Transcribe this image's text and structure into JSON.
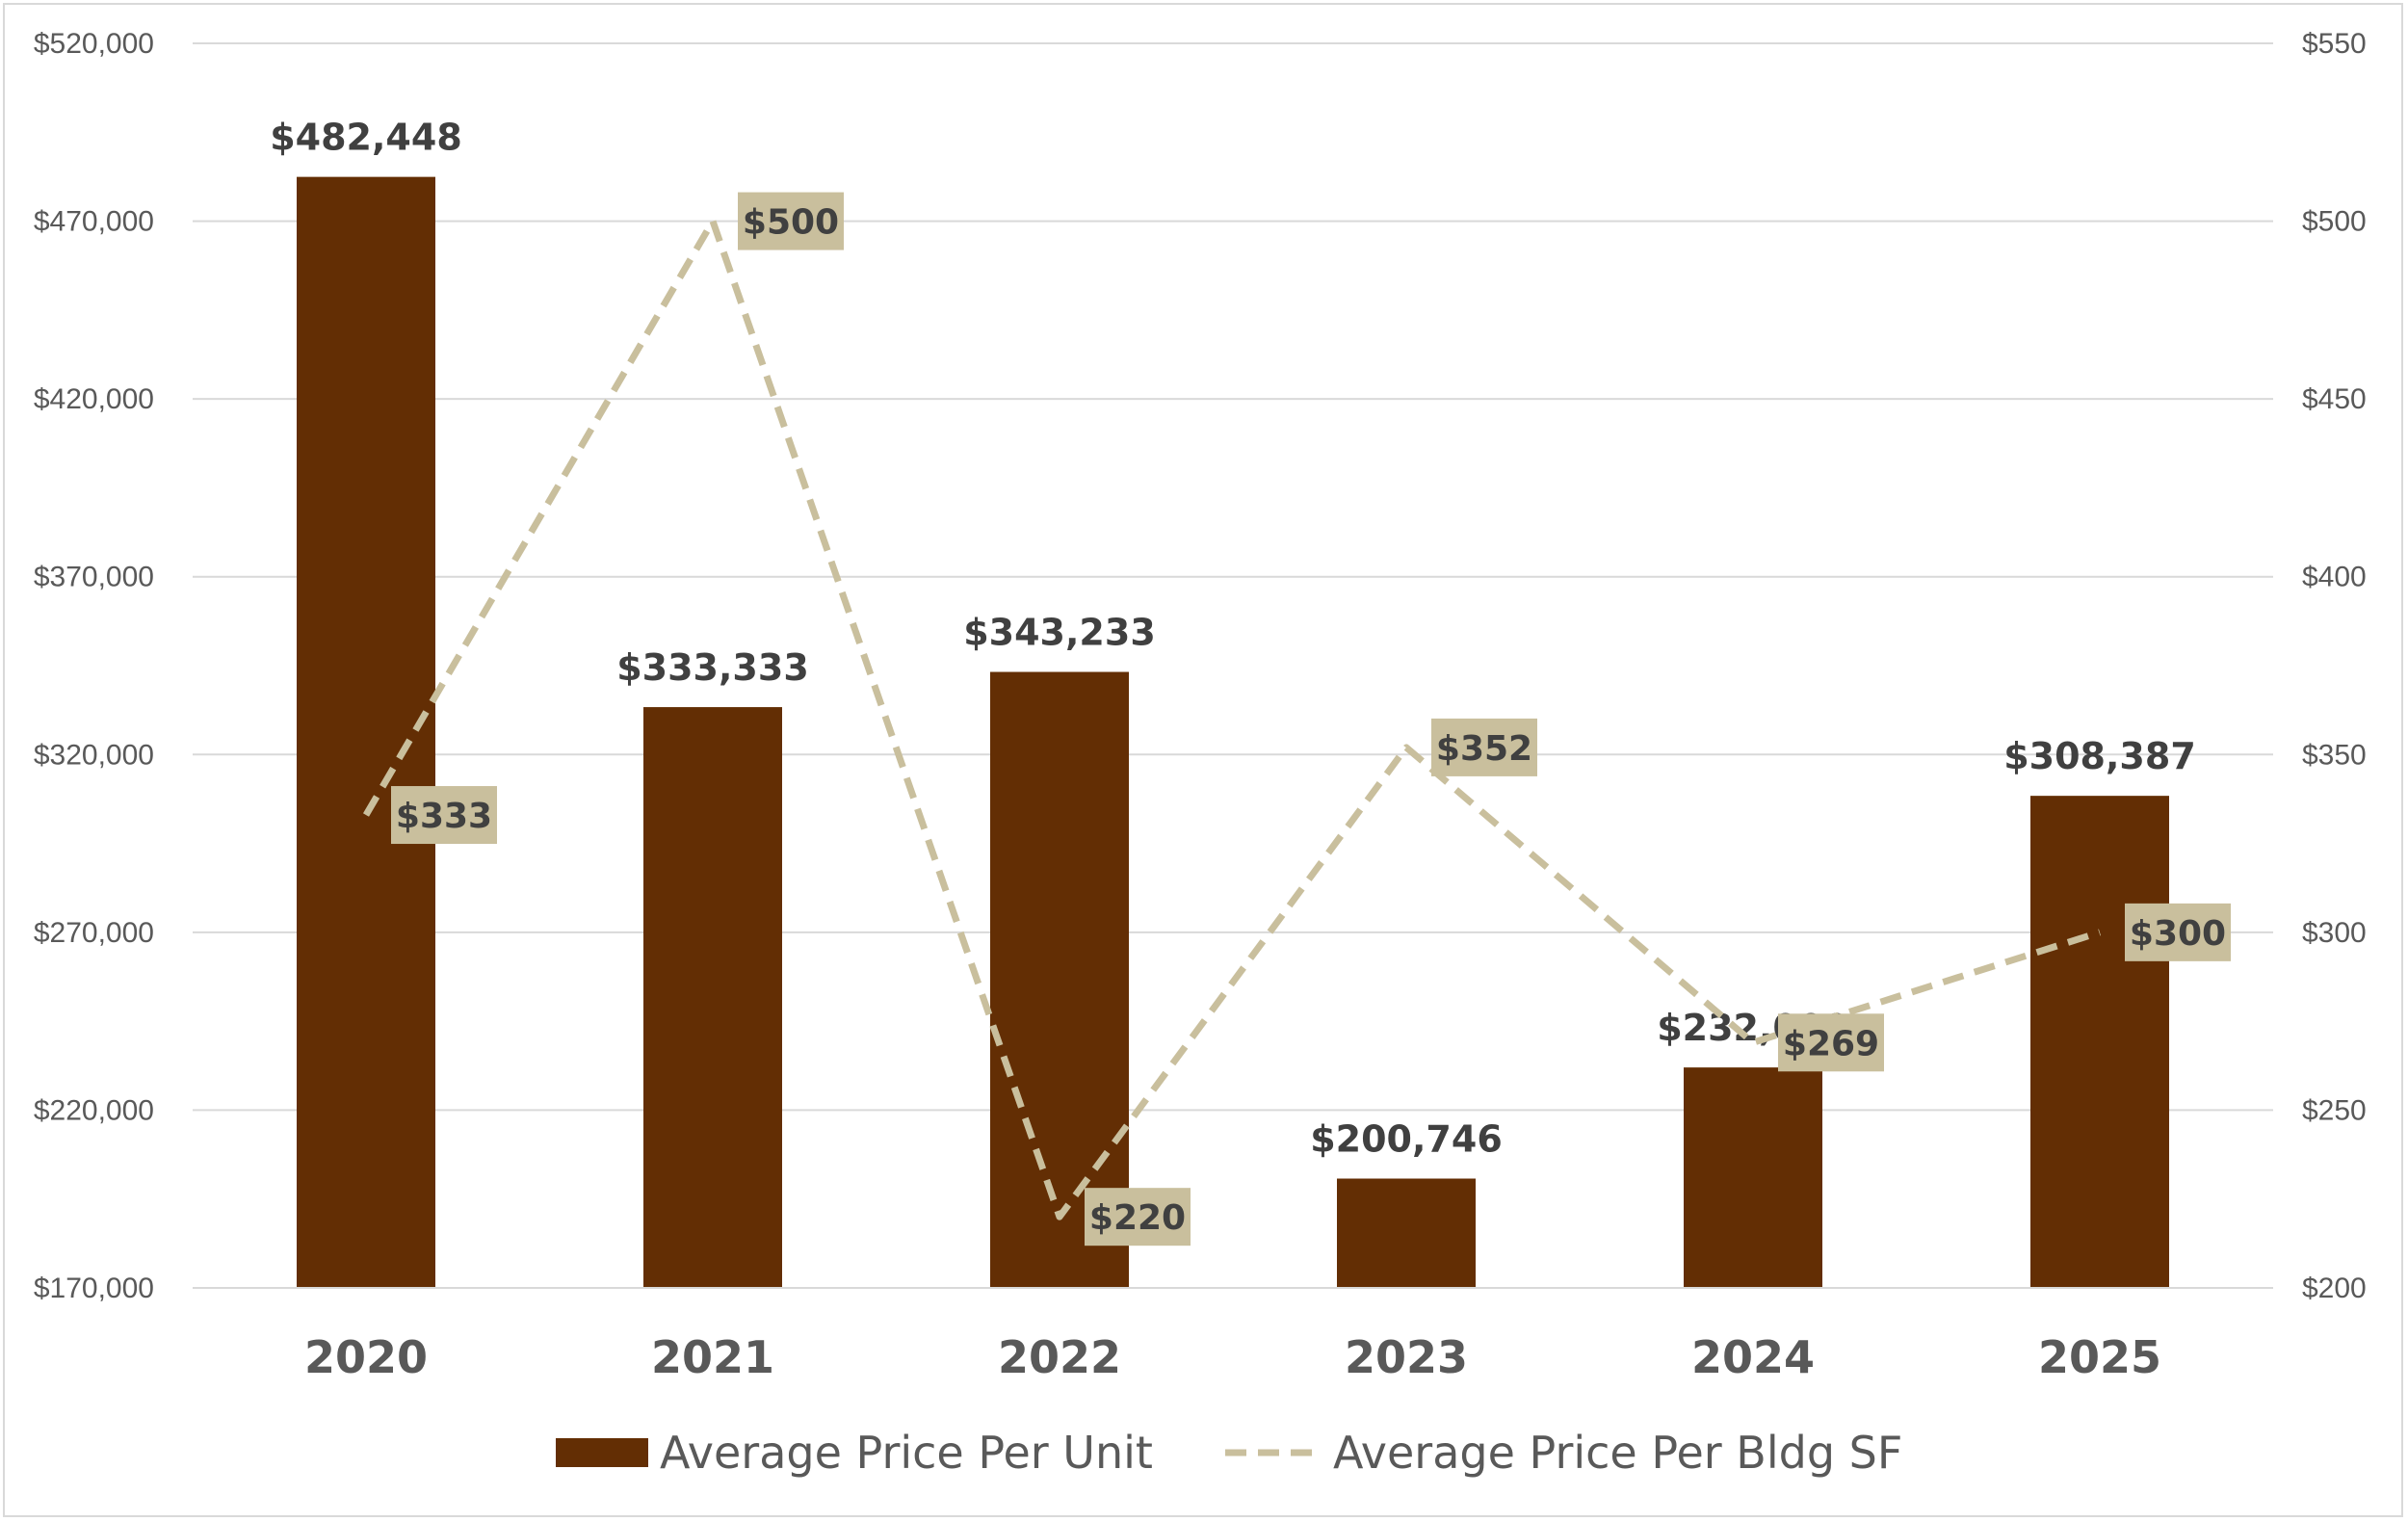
{
  "chart_data": {
    "type": "bar",
    "categories": [
      "2020",
      "2021",
      "2022",
      "2023",
      "2024",
      "2025"
    ],
    "series": [
      {
        "name": "Average Price Per Unit",
        "type": "bar",
        "axis": "left",
        "values": [
          482448,
          333333,
          343233,
          200746,
          232000,
          308387
        ],
        "labels": [
          "$482,448",
          "$333,333",
          "$343,233",
          "$200,746",
          "$232,000",
          "$308,387"
        ],
        "color": "#632e04"
      },
      {
        "name": "Average Price Per Bldg SF",
        "type": "line",
        "style": "dashed",
        "axis": "right",
        "values": [
          333,
          500,
          220,
          352,
          269,
          300
        ],
        "labels": [
          "$333",
          "$500",
          "$220",
          "$352",
          "$269",
          "$300"
        ],
        "color": "#c9bf9d"
      }
    ],
    "y_left": {
      "ylim": [
        170000,
        520000
      ],
      "ticks": [
        "$520,000",
        "$470,000",
        "$420,000",
        "$370,000",
        "$320,000",
        "$270,000",
        "$220,000",
        "$170,000"
      ]
    },
    "y_right": {
      "ylim": [
        200,
        550
      ],
      "ticks": [
        "$550",
        "$500",
        "$450",
        "$400",
        "$350",
        "$300",
        "$250",
        "$200"
      ]
    },
    "grid": true,
    "legend": "bottom"
  }
}
